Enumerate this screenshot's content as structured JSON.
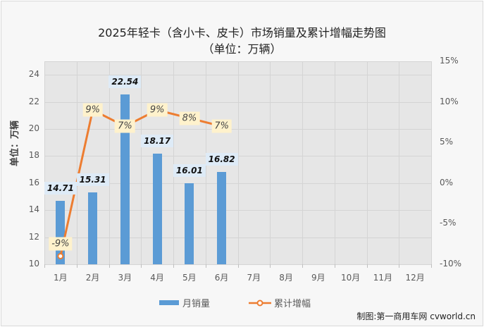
{
  "title": {
    "line1": "2025年轻卡（含小卡、皮卡）市场销量及累计增幅走势图",
    "line2": "（单位：万辆）"
  },
  "y_axis_left_label": "单位：万辆",
  "credit": "制图:第一商用车网 cvworld.cn",
  "legend": {
    "bar": "月销量",
    "line": "累计增幅"
  },
  "colors": {
    "bar": "#5b9bd5",
    "line": "#ed7d31",
    "bar_label_bg": "#deebf7",
    "pct_label_bg": "#fff2cc",
    "plot_bg": "#e6e6e6"
  },
  "left_ticks": [
    "24",
    "22",
    "20",
    "18",
    "16",
    "14",
    "12",
    "10"
  ],
  "right_ticks": [
    "15%",
    "10%",
    "5%",
    "0%",
    "-5%",
    "-10%"
  ],
  "months": [
    "1月",
    "2月",
    "3月",
    "4月",
    "5月",
    "6月",
    "7月",
    "8月",
    "9月",
    "10月",
    "11月",
    "12月"
  ],
  "bar_labels": [
    "14.71",
    "15.31",
    "22.54",
    "18.17",
    "16.01",
    "16.82"
  ],
  "pct_labels": [
    "-9%",
    "9%",
    "7%",
    "9%",
    "8%",
    "7%"
  ],
  "chart_data": {
    "type": "bar+line",
    "title": "2025年轻卡（含小卡、皮卡）市场销量及累计增幅走势图（单位：万辆）",
    "categories": [
      "1月",
      "2月",
      "3月",
      "4月",
      "5月",
      "6月",
      "7月",
      "8月",
      "9月",
      "10月",
      "11月",
      "12月"
    ],
    "series": [
      {
        "name": "月销量",
        "type": "bar",
        "axis": "left",
        "values": [
          14.71,
          15.31,
          22.54,
          18.17,
          16.01,
          16.82,
          null,
          null,
          null,
          null,
          null,
          null
        ]
      },
      {
        "name": "累计增幅",
        "type": "line",
        "axis": "right",
        "values": [
          -9,
          9,
          7,
          9,
          8,
          7,
          null,
          null,
          null,
          null,
          null,
          null
        ],
        "unit": "%"
      }
    ],
    "xlabel": "",
    "ylabel": "单位：万辆",
    "ylim_left": [
      10,
      25
    ],
    "yticks_left": [
      10,
      12,
      14,
      16,
      18,
      20,
      22,
      24
    ],
    "ylim_right": [
      -10,
      15
    ],
    "yticks_right": [
      -10,
      -5,
      0,
      5,
      10,
      15
    ],
    "grid": true,
    "legend_position": "bottom"
  }
}
